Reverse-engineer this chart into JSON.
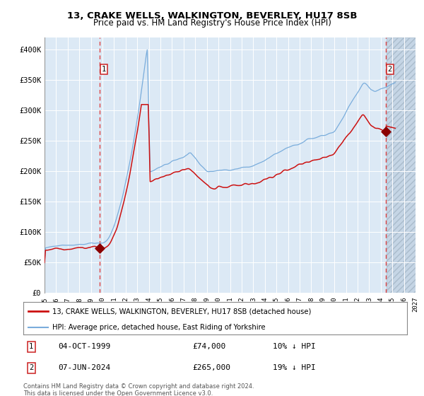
{
  "title1": "13, CRAKE WELLS, WALKINGTON, BEVERLEY, HU17 8SB",
  "title2": "Price paid vs. HM Land Registry's House Price Index (HPI)",
  "legend_line1": "13, CRAKE WELLS, WALKINGTON, BEVERLEY, HU17 8SB (detached house)",
  "legend_line2": "HPI: Average price, detached house, East Riding of Yorkshire",
  "annotation1_date": "04-OCT-1999",
  "annotation1_price": "£74,000",
  "annotation1_hpi": "10% ↓ HPI",
  "annotation2_date": "07-JUN-2024",
  "annotation2_price": "£265,000",
  "annotation2_hpi": "19% ↓ HPI",
  "footer": "Contains HM Land Registry data © Crown copyright and database right 2024.\nThis data is licensed under the Open Government Licence v3.0.",
  "sale1_x": 1999.75,
  "sale1_y": 74000,
  "sale2_x": 2024.44,
  "sale2_y": 265000,
  "xmin": 1995.0,
  "xmax": 2027.0,
  "ymin": 0,
  "ymax": 420000,
  "future_start": 2024.5,
  "bg_color": "#dce9f5",
  "future_color": "#c5d5e5",
  "hpi_color": "#7aaddc",
  "prop_color": "#cc1111",
  "marker_color": "#8b0000",
  "grid_color": "#ffffff",
  "dashed_color": "#dd4444",
  "yticks": [
    0,
    50000,
    100000,
    150000,
    200000,
    250000,
    300000,
    350000,
    400000
  ],
  "ytick_labels": [
    "£0",
    "£50K",
    "£100K",
    "£150K",
    "£200K",
    "£250K",
    "£300K",
    "£350K",
    "£400K"
  ],
  "xtick_years": [
    1995,
    1996,
    1997,
    1998,
    1999,
    2000,
    2001,
    2002,
    2003,
    2004,
    2005,
    2006,
    2007,
    2008,
    2009,
    2010,
    2011,
    2012,
    2013,
    2014,
    2015,
    2016,
    2017,
    2018,
    2019,
    2020,
    2021,
    2022,
    2023,
    2024,
    2025,
    2026,
    2027
  ]
}
